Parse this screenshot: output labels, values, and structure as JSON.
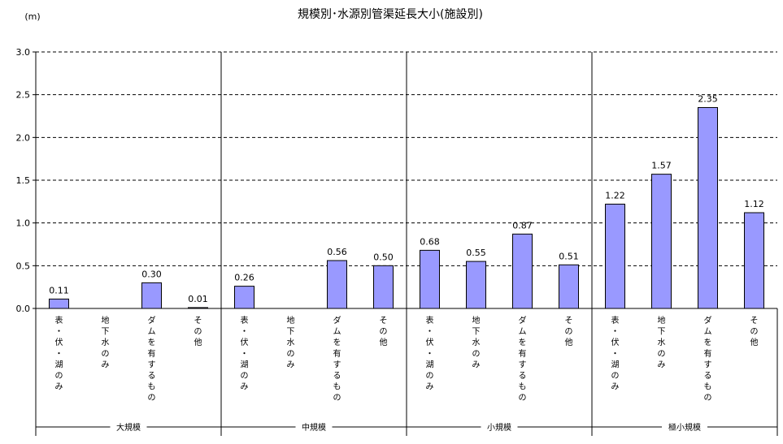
{
  "chart_data": {
    "type": "bar",
    "title": "規模別･水源別管渠延長大小(施設別)",
    "unit_label": "(m)",
    "ylim": [
      0,
      3.0
    ],
    "y_ticks": [
      "0.0",
      "0.5",
      "1.0",
      "1.5",
      "2.0",
      "2.5",
      "3.0"
    ],
    "grid": "dashed-horizontal",
    "colors": {
      "bar_fill": "#9999ff",
      "bar_stroke": "#000000"
    },
    "groups": [
      {
        "name": "大規模",
        "categories": [
          "表・伏・湖のみ",
          "地下水のみ",
          "ダムを有するもの",
          "その他"
        ],
        "values": [
          0.11,
          null,
          0.3,
          0.01
        ],
        "labels": [
          "0.11",
          "",
          "0.30",
          "0.01"
        ]
      },
      {
        "name": "中規模",
        "categories": [
          "表・伏・湖のみ",
          "地下水のみ",
          "ダムを有するもの",
          "その他"
        ],
        "values": [
          0.26,
          null,
          0.56,
          0.5
        ],
        "labels": [
          "0.26",
          "",
          "0.56",
          "0.50"
        ]
      },
      {
        "name": "小規模",
        "categories": [
          "表・伏・湖のみ",
          "地下水のみ",
          "ダムを有するもの",
          "その他"
        ],
        "values": [
          0.68,
          0.55,
          0.87,
          0.51
        ],
        "labels": [
          "0.68",
          "0.55",
          "0.87",
          "0.51"
        ]
      },
      {
        "name": "極小規模",
        "categories": [
          "表・伏・湖のみ",
          "地下水のみ",
          "ダムを有するもの",
          "その他"
        ],
        "values": [
          1.22,
          1.57,
          2.35,
          1.12
        ],
        "labels": [
          "1.22",
          "1.57",
          "2.35",
          "1.12"
        ]
      }
    ]
  }
}
